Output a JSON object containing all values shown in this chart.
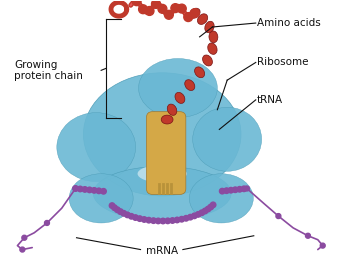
{
  "bg_color": "#ffffff",
  "ribosome_color": "#6ab8d4",
  "trna_color": "#d4a847",
  "trna_stem_color": "#b8923a",
  "chain_bead_color": "#c0392b",
  "chain_bead_dark": "#8b1a1a",
  "mrna_color": "#8b4ba0",
  "label_color": "#111111",
  "figsize": [
    3.5,
    2.58
  ],
  "dpi": 100,
  "labels": {
    "amino_acids": "Amino acids",
    "ribosome": "Ribosome",
    "trna": "tRNA",
    "mrna": "mRNA",
    "growing_chain_1": "Growing",
    "growing_chain_2": "protein chain"
  }
}
